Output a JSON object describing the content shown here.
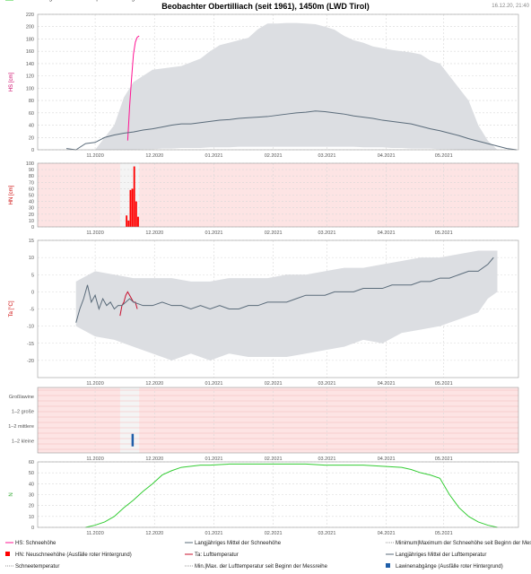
{
  "header": {
    "title": "Beobachter Obertilliach (seit 1961), 1450m (LWD Tirol)",
    "timestamp": "16.12.20, 21:40"
  },
  "x_axis": {
    "tick_labels": [
      "11.2020",
      "12.2020",
      "01.2021",
      "02.2021",
      "03.2021",
      "04.2021",
      "05.2021"
    ]
  },
  "colors": {
    "snow": "#ff1493",
    "snow_mean": "#5a6b7a",
    "band": "#dcdee2",
    "new_snow": "#ff0000",
    "new_snow_bg": "#fde4e4",
    "temp": "#c8102e",
    "temp_mean": "#5a6b7a",
    "avalanche": "#1f5ea8",
    "count": "#33cc33"
  },
  "chart_data": [
    {
      "type": "area",
      "name": "snow_depth",
      "ylabel": "HS [cm]",
      "ylim": [
        0,
        220
      ],
      "yticks": [
        0,
        20,
        40,
        60,
        80,
        100,
        120,
        140,
        160,
        180,
        200,
        220
      ],
      "xlim_days": [
        -30,
        221
      ],
      "grid": true,
      "series": [
        {
          "name": "HS: Schneehöhe",
          "style": "line",
          "color": "#ff1493",
          "x": [
            17,
            18,
            19,
            20,
            21,
            22,
            23
          ],
          "y": [
            15,
            70,
            115,
            155,
            175,
            183,
            185
          ]
        },
        {
          "name": "Langjähriges Mittel der Schneehöhe",
          "style": "line",
          "color": "#5a6b7a",
          "x": [
            -15,
            -10,
            -5,
            0,
            5,
            10,
            15,
            20,
            25,
            30,
            35,
            40,
            45,
            50,
            55,
            60,
            65,
            70,
            75,
            80,
            85,
            90,
            95,
            100,
            105,
            110,
            115,
            120,
            125,
            130,
            135,
            140,
            145,
            150,
            155,
            160,
            165,
            170,
            175,
            180,
            185,
            190,
            195,
            200,
            205,
            210,
            215,
            220
          ],
          "y": [
            2,
            0,
            10,
            12,
            20,
            24,
            27,
            29,
            32,
            34,
            37,
            40,
            42,
            42,
            44,
            46,
            48,
            49,
            51,
            52,
            53,
            54,
            56,
            58,
            60,
            61,
            63,
            62,
            60,
            58,
            55,
            53,
            51,
            48,
            46,
            44,
            42,
            38,
            34,
            31,
            27,
            23,
            18,
            14,
            10,
            6,
            2,
            0
          ]
        },
        {
          "name": "Minimum|Maximum der Schneehöhe seit Beginn der Messreihe",
          "style": "band",
          "color": "#dcdee2",
          "x": [
            0,
            10,
            15,
            20,
            25,
            30,
            35,
            40,
            45,
            50,
            55,
            60,
            65,
            70,
            75,
            80,
            85,
            90,
            95,
            100,
            105,
            110,
            115,
            120,
            125,
            130,
            135,
            140,
            145,
            150,
            155,
            160,
            165,
            170,
            175,
            180,
            185,
            190,
            195,
            200,
            205,
            210
          ],
          "upper": [
            0,
            40,
            85,
            110,
            120,
            130,
            132,
            134,
            136,
            142,
            148,
            160,
            170,
            174,
            178,
            182,
            196,
            205,
            205,
            206,
            206,
            205,
            204,
            200,
            195,
            185,
            178,
            174,
            168,
            165,
            162,
            160,
            158,
            155,
            145,
            140,
            120,
            100,
            80,
            40,
            15,
            0
          ],
          "lower": [
            0,
            0,
            0,
            0,
            1,
            1,
            2,
            2,
            3,
            3,
            3,
            4,
            4,
            4,
            5,
            5,
            5,
            5,
            5,
            5,
            5,
            5,
            5,
            5,
            5,
            5,
            5,
            4,
            4,
            4,
            3,
            3,
            2,
            2,
            2,
            1,
            1,
            0,
            0,
            0,
            0,
            0
          ]
        }
      ]
    },
    {
      "type": "bar",
      "name": "new_snow",
      "ylabel": "HN [cm]",
      "ylim": [
        0,
        100
      ],
      "yticks": [
        0,
        10,
        20,
        30,
        40,
        50,
        60,
        70,
        80,
        90,
        100
      ],
      "xlim_days": [
        -30,
        221
      ],
      "grid": true,
      "background_missing": "#fde4e4",
      "data_window_days": [
        13,
        23
      ],
      "series": [
        {
          "name": "HN: Neuschneehöhe (Ausfälle roter Hintergrund)",
          "color": "#ff0000",
          "x": [
            16,
            17,
            18,
            19,
            20,
            21,
            22
          ],
          "y": [
            18,
            10,
            58,
            60,
            95,
            40,
            16
          ]
        }
      ]
    },
    {
      "type": "line",
      "name": "air_temperature",
      "ylabel": "Ta [°C]",
      "ylim": [
        -25,
        15
      ],
      "yticks": [
        -20,
        -15,
        -10,
        -5,
        0,
        5,
        10,
        15
      ],
      "xlim_days": [
        -30,
        221
      ],
      "grid": true,
      "series": [
        {
          "name": "Ta: Lufttemperatur",
          "color": "#c8102e",
          "x": [
            13,
            14,
            15,
            16,
            17,
            18,
            19,
            20,
            21,
            22
          ],
          "y": [
            -7,
            -4,
            -3,
            -1,
            0,
            -1,
            -2,
            -3,
            -3,
            -5
          ]
        },
        {
          "name": "Langjähriges Mittel der Lufttemperatur",
          "color": "#5a6b7a",
          "x": [
            -10,
            -8,
            -6,
            -4,
            -2,
            0,
            2,
            4,
            6,
            8,
            10,
            12,
            14,
            16,
            18,
            20,
            25,
            30,
            35,
            40,
            45,
            50,
            55,
            60,
            65,
            70,
            75,
            80,
            85,
            90,
            95,
            100,
            105,
            110,
            115,
            120,
            125,
            130,
            135,
            140,
            145,
            150,
            155,
            160,
            165,
            170,
            175,
            180,
            185,
            190,
            195,
            200,
            205,
            208
          ],
          "y": [
            -9,
            -5,
            -2,
            2,
            -3,
            -1,
            -5,
            -2,
            -4,
            -3,
            -5,
            -4,
            -4,
            -3,
            -2,
            -3,
            -4,
            -4,
            -3,
            -4,
            -4,
            -5,
            -4,
            -5,
            -4,
            -5,
            -5,
            -4,
            -4,
            -3,
            -3,
            -3,
            -2,
            -1,
            -1,
            -1,
            0,
            0,
            0,
            1,
            1,
            1,
            2,
            2,
            2,
            3,
            3,
            4,
            4,
            5,
            6,
            6,
            8,
            10
          ]
        },
        {
          "name": "Min.|Max. der Lufttemperatur seit Beginn der Messreihe",
          "style": "band",
          "color": "#dcdee2",
          "x": [
            -10,
            0,
            10,
            20,
            30,
            40,
            50,
            60,
            70,
            80,
            90,
            100,
            110,
            120,
            130,
            140,
            150,
            160,
            170,
            180,
            190,
            200,
            205,
            210
          ],
          "upper": [
            3,
            6,
            5,
            4,
            4,
            4,
            3,
            3,
            4,
            4,
            4,
            5,
            5,
            6,
            7,
            7,
            8,
            9,
            10,
            10,
            11,
            12,
            12,
            12
          ],
          "lower": [
            -10,
            -13,
            -14,
            -16,
            -18,
            -20,
            -18,
            -20,
            -18,
            -19,
            -19,
            -19,
            -18,
            -17,
            -16,
            -14,
            -15,
            -12,
            -11,
            -10,
            -8,
            -6,
            -2,
            0
          ]
        }
      ]
    },
    {
      "type": "scatter",
      "name": "avalanches",
      "categories": [
        "Großlawine",
        "1–2 große",
        "1–2 mittlere",
        "1–2 kleine"
      ],
      "xlim_days": [
        -30,
        221
      ],
      "background_missing": "#fde4e4",
      "data_window_days": [
        13,
        23
      ],
      "series": [
        {
          "name": "Lawinenabgänge (Ausfälle roter Hintergrund)",
          "color": "#1f5ea8",
          "x": [
            19
          ],
          "category": "1–2 kleine"
        }
      ]
    },
    {
      "type": "line",
      "name": "year_count",
      "ylabel": "N",
      "ylim": [
        0,
        60
      ],
      "yticks": [
        0,
        10,
        20,
        30,
        40,
        50,
        60
      ],
      "xlim_days": [
        -30,
        221
      ],
      "grid": true,
      "series": [
        {
          "name": "N: Anzahl der gemessenen Jahre pro Kalendertag",
          "color": "#33cc33",
          "x": [
            -5,
            0,
            5,
            10,
            15,
            20,
            25,
            30,
            35,
            40,
            45,
            50,
            55,
            60,
            70,
            80,
            90,
            100,
            110,
            120,
            130,
            140,
            150,
            160,
            165,
            170,
            175,
            180,
            185,
            190,
            195,
            200,
            205,
            210
          ],
          "y": [
            0,
            2,
            5,
            10,
            18,
            25,
            33,
            40,
            48,
            52,
            55,
            56,
            57,
            57,
            58,
            58,
            58,
            58,
            58,
            57,
            57,
            57,
            56,
            55,
            53,
            50,
            48,
            45,
            30,
            18,
            10,
            5,
            2,
            0
          ]
        }
      ]
    }
  ],
  "legend": [
    {
      "label": "HS: Schneehöhe",
      "symbol": "line",
      "color": "#ff1493"
    },
    {
      "label": "Langjähriges Mittel der Schneehöhe",
      "symbol": "line",
      "color": "#5a6b7a"
    },
    {
      "label": "Minimum|Maximum der Schneehöhe seit Beginn der Messreihe",
      "symbol": "dotted",
      "color": "#999999"
    },
    {
      "label": "HN: Neuschneehöhe (Ausfälle roter Hintergrund)",
      "symbol": "square",
      "color": "#ff0000"
    },
    {
      "label": "Ta: Lufttemperatur",
      "symbol": "line",
      "color": "#c8102e"
    },
    {
      "label": "Langjähriges Mittel der Lufttemperatur",
      "symbol": "line",
      "color": "#5a6b7a"
    },
    {
      "label": "Schneetemperatur",
      "symbol": "dotted",
      "color": "#999999"
    },
    {
      "label": "Min.|Max. der Lufttemperatur seit Beginn der Messreihe",
      "symbol": "dotted",
      "color": "#999999"
    },
    {
      "label": "Lawinenabgänge (Ausfälle roter Hintergrund)",
      "symbol": "square",
      "color": "#1f5ea8"
    },
    {
      "label": "N: Anzahl der gemessenen Jahre pro Kalendertag",
      "symbol": "line",
      "color": "#33cc33"
    }
  ]
}
